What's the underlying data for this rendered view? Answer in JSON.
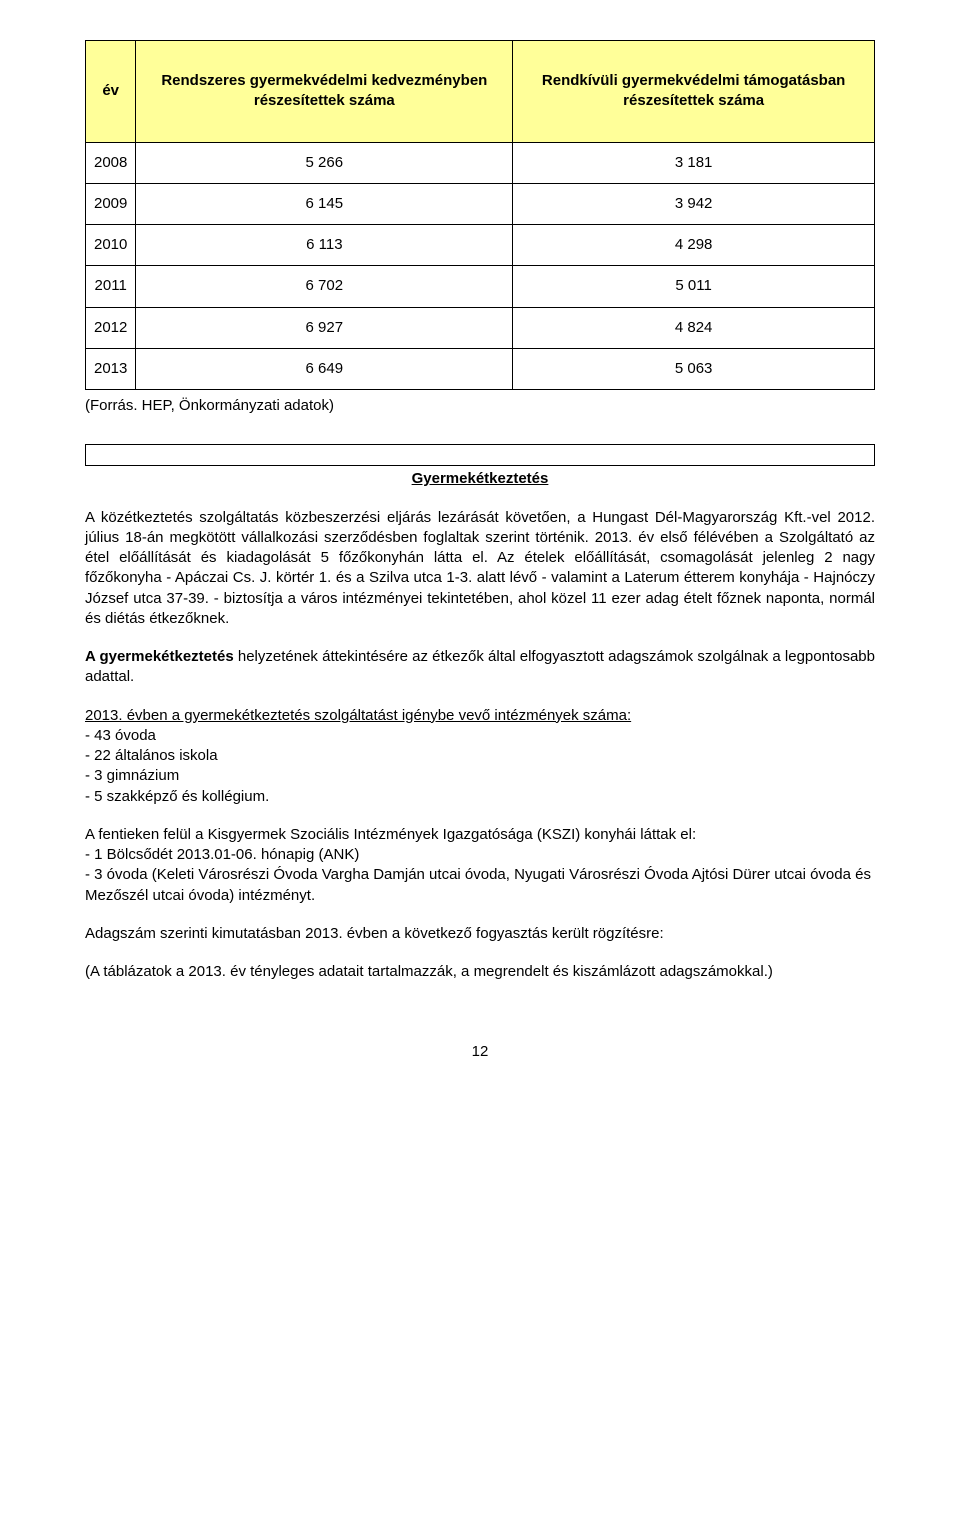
{
  "table": {
    "header_col0": "év",
    "header_col1": "Rendszeres gyermekvédelmi kedvezményben részesítettek száma",
    "header_col2": "Rendkívüli gyermekvédelmi támogatásban részesítettek száma",
    "header_bg": "#ffff99",
    "border_color": "#000000",
    "rows": [
      {
        "year": "2008",
        "c1": "5 266",
        "c2": "3 181"
      },
      {
        "year": "2009",
        "c1": "6 145",
        "c2": "3 942"
      },
      {
        "year": "2010",
        "c1": "6 113",
        "c2": "4 298"
      },
      {
        "year": "2011",
        "c1": "6 702",
        "c2": "5 011"
      },
      {
        "year": "2012",
        "c1": "6 927",
        "c2": "4 824"
      },
      {
        "year": "2013",
        "c1": "6 649",
        "c2": "5 063"
      }
    ]
  },
  "source_note": "(Forrás. HEP, Önkormányzati adatok)",
  "subsection_title": "Gyermekétkeztetés",
  "para1": "A közétkeztetés szolgáltatás közbeszerzési eljárás lezárását követően, a Hungast Dél-Magyarország Kft.-vel 2012. július 18-án megkötött vállalkozási szerződésben foglaltak szerint történik. 2013. év első félévében a Szolgáltató az étel előállítását és kiadagolását 5 főzőkonyhán látta el. Az ételek előállítását, csomagolását jelenleg 2 nagy főzőkonyha - Apáczai Cs. J. körtér 1. és a Szilva utca 1-3. alatt lévő - valamint a Laterum étterem konyhája - Hajnóczy József utca 37-39. - biztosítja a város intézményei tekintetében, ahol közel 11 ezer adag ételt főznek naponta, normál és diétás étkezőknek.",
  "para2_bold": "A gyermekétkeztetés",
  "para2_rest": " helyzetének áttekintésére az étkezők által elfogyasztott adagszámok szolgálnak a legpontosabb adattal.",
  "list1_heading": "2013. évben a gyermekétkeztetés szolgáltatást igénybe vevő intézmények száma:",
  "list1_items": [
    "- 43 óvoda",
    "- 22 általános iskola",
    "- 3 gimnázium",
    "- 5 szakképző és kollégium."
  ],
  "list2_heading": "A fentieken felül a Kisgyermek Szociális Intézmények Igazgatósága (KSZI) konyhái láttak el:",
  "list2_items": [
    "- 1 Bölcsődét 2013.01-06. hónapig (ANK)",
    "- 3 óvoda (Keleti Városrészi Óvoda Vargha Damján utcai óvoda, Nyugati Városrészi Óvoda Ajtósi Dürer utcai óvoda és Mezőszél utcai óvoda) intézményt."
  ],
  "para3": "Adagszám szerinti kimutatásban 2013. évben a következő fogyasztás került rögzítésre:",
  "para4": "(A táblázatok a 2013. év tényleges adatait tartalmazzák, a megrendelt és kiszámlázott adagszámokkal.)",
  "page_number": "12",
  "colors": {
    "background": "#ffffff",
    "text": "#000000"
  }
}
